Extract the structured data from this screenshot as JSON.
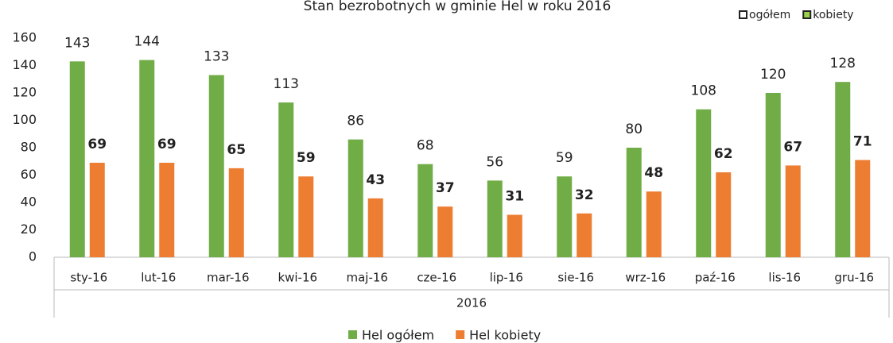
{
  "chart_data": {
    "type": "bar",
    "title": "Stan bezrobotnych w gminie Hel w roku 2016",
    "filters": [
      "ogółem",
      "kobiety"
    ],
    "group_label": "2016",
    "categories": [
      "sty-16",
      "lut-16",
      "mar-16",
      "kwi-16",
      "maj-16",
      "cze-16",
      "lip-16",
      "sie-16",
      "wrz-16",
      "paź-16",
      "lis-16",
      "gru-16"
    ],
    "series": [
      {
        "name": "Hel ogółem",
        "color": "#70ad47",
        "values": [
          143,
          144,
          133,
          113,
          86,
          68,
          56,
          59,
          80,
          108,
          120,
          128
        ]
      },
      {
        "name": "Hel kobiety",
        "color": "#ed7d31",
        "values": [
          69,
          69,
          65,
          59,
          43,
          37,
          31,
          32,
          48,
          62,
          67,
          71
        ]
      }
    ],
    "ylim": [
      0,
      160
    ],
    "yticks": [
      0,
      20,
      40,
      60,
      80,
      100,
      120,
      140,
      160
    ],
    "grid": false
  }
}
